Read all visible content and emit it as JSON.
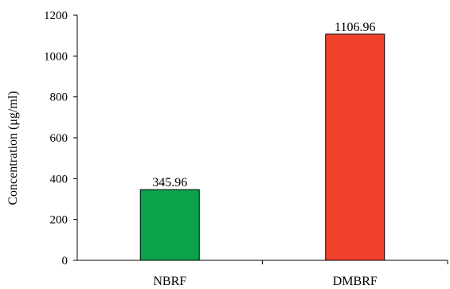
{
  "chart_data": {
    "type": "bar",
    "categories": [
      "NBRF",
      "DMBRF"
    ],
    "values": [
      345.96,
      1106.96
    ],
    "value_labels": [
      "345.96",
      "1106.96"
    ],
    "colors": [
      "#0aa24a",
      "#f0412a"
    ],
    "title": "",
    "xlabel": "",
    "ylabel": "Concentration (μg/ml)",
    "ylim": [
      0,
      1200
    ],
    "yticks": [
      0,
      200,
      400,
      600,
      800,
      1000,
      1200
    ],
    "grid": false,
    "legend": "none"
  }
}
